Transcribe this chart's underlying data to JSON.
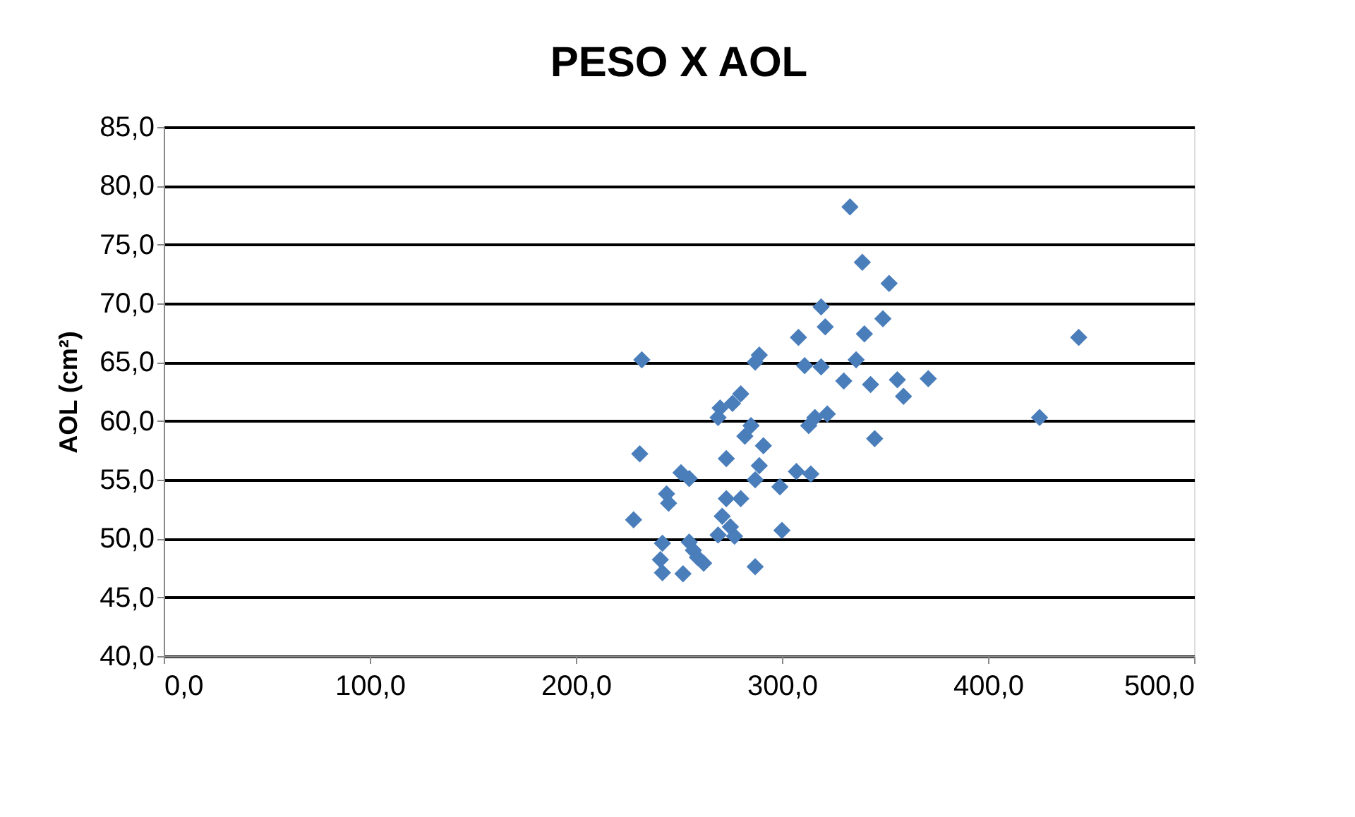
{
  "chart_data": {
    "type": "scatter",
    "title": "PESO X AOL",
    "ylabel": "AOL (cm²)",
    "x": [
      333,
      339,
      352,
      349,
      444,
      319,
      321,
      340,
      308,
      289,
      287,
      232,
      311,
      319,
      336,
      330,
      343,
      356,
      371,
      359,
      280,
      276,
      270,
      269,
      425,
      322,
      316,
      313,
      285,
      282,
      345,
      291,
      231,
      273,
      289,
      307,
      314,
      251,
      255,
      287,
      299,
      244,
      273,
      280,
      245,
      228,
      271,
      275,
      300,
      269,
      277,
      242,
      255,
      257,
      241,
      259,
      262,
      287,
      242,
      252
    ],
    "values": [
      78.2,
      73.5,
      71.7,
      68.7,
      67.1,
      69.7,
      68.0,
      67.4,
      67.1,
      65.6,
      65.0,
      65.2,
      64.7,
      64.6,
      65.2,
      63.4,
      63.1,
      63.5,
      63.6,
      62.1,
      62.3,
      61.5,
      61.1,
      60.3,
      60.3,
      60.6,
      60.3,
      59.6,
      59.6,
      58.7,
      58.5,
      57.9,
      57.2,
      56.8,
      56.2,
      55.7,
      55.5,
      55.6,
      55.1,
      55.0,
      54.4,
      53.8,
      53.4,
      53.4,
      53.0,
      51.6,
      51.9,
      51.0,
      50.7,
      50.3,
      50.2,
      49.6,
      49.7,
      49.0,
      48.2,
      48.4,
      47.9,
      47.6,
      47.1,
      47.0
    ],
    "color": "#4a7ebb",
    "marker": "diamond",
    "xlim": [
      0,
      500
    ],
    "xticks": [
      {
        "value": 0,
        "label": "0,0"
      },
      {
        "value": 100,
        "label": "100,0"
      },
      {
        "value": 200,
        "label": "200,0"
      },
      {
        "value": 300,
        "label": "300,0"
      },
      {
        "value": 400,
        "label": "400,0"
      },
      {
        "value": 500,
        "label": "500,0"
      }
    ],
    "ylim": [
      40,
      85
    ],
    "yticks": [
      {
        "value": 40,
        "label": "40,0"
      },
      {
        "value": 45,
        "label": "45,0"
      },
      {
        "value": 50,
        "label": "50,0"
      },
      {
        "value": 55,
        "label": "55,0"
      },
      {
        "value": 60,
        "label": "60,0"
      },
      {
        "value": 65,
        "label": "65,0"
      },
      {
        "value": 70,
        "label": "70,0"
      },
      {
        "value": 75,
        "label": "75,0"
      },
      {
        "value": 80,
        "label": "80,0"
      },
      {
        "value": 85,
        "label": "85,0"
      }
    ],
    "grid": "y"
  }
}
